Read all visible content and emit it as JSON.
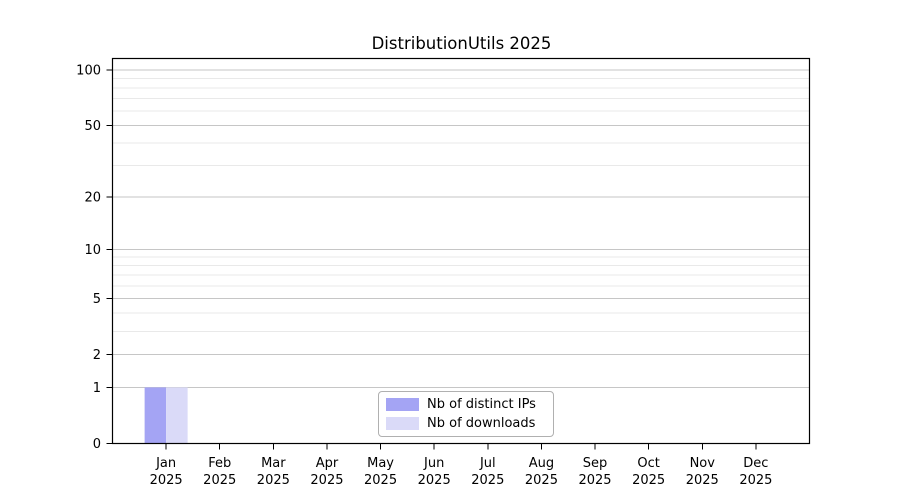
{
  "chart_data": {
    "type": "bar",
    "title": "DistributionUtils 2025",
    "categories": [
      "Jan 2025",
      "Feb 2025",
      "Mar 2025",
      "Apr 2025",
      "May 2025",
      "Jun 2025",
      "Jul 2025",
      "Aug 2025",
      "Sep 2025",
      "Oct 2025",
      "Nov 2025",
      "Dec 2025"
    ],
    "series": [
      {
        "name": "Nb of distinct IPs",
        "color": "#a4a4f4",
        "values": [
          1,
          0,
          0,
          0,
          0,
          0,
          0,
          0,
          0,
          0,
          0,
          0
        ]
      },
      {
        "name": "Nb of downloads",
        "color": "#dadaf8",
        "values": [
          1,
          0,
          0,
          0,
          0,
          0,
          0,
          0,
          0,
          0,
          0,
          0
        ]
      }
    ],
    "xlabel": "",
    "ylabel": "",
    "yscale": "log1p",
    "ylim": [
      0,
      116
    ],
    "yticks": [
      0,
      1,
      2,
      5,
      10,
      20,
      50,
      100
    ],
    "yticks_minor": [
      3,
      4,
      6,
      7,
      8,
      9,
      30,
      40,
      60,
      70,
      80,
      90
    ],
    "grid": "horizontal",
    "legend_position": "lower center"
  },
  "colors": {
    "background": "#ffffff",
    "spine": "#000000",
    "text": "#000000",
    "grid_major": "#c6c6c6",
    "grid_minor": "#e9e9e9",
    "legend_border": "#b0b0b0"
  }
}
